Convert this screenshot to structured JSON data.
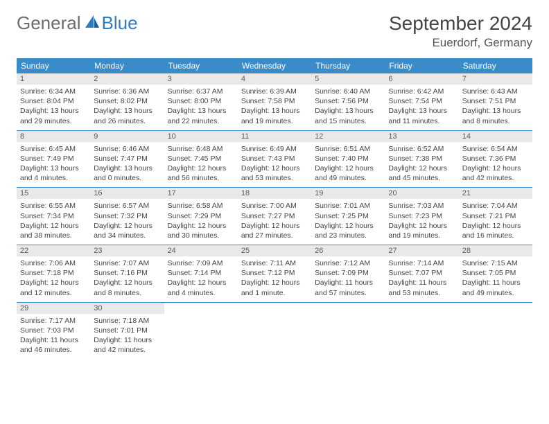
{
  "logo": {
    "text1": "General",
    "text2": "Blue"
  },
  "title": "September 2024",
  "location": "Euerdorf, Germany",
  "colors": {
    "header_bg": "#3a8cc9",
    "header_text": "#ffffff",
    "daynum_bg": "#e9e9e9",
    "row_border": "#3a8cc9",
    "logo_gray": "#6b6b6b",
    "logo_blue": "#2f7bbf",
    "text": "#444444"
  },
  "weekdays": [
    "Sunday",
    "Monday",
    "Tuesday",
    "Wednesday",
    "Thursday",
    "Friday",
    "Saturday"
  ],
  "weeks": [
    [
      {
        "n": "1",
        "sr": "Sunrise: 6:34 AM",
        "ss": "Sunset: 8:04 PM",
        "dl": "Daylight: 13 hours and 29 minutes."
      },
      {
        "n": "2",
        "sr": "Sunrise: 6:36 AM",
        "ss": "Sunset: 8:02 PM",
        "dl": "Daylight: 13 hours and 26 minutes."
      },
      {
        "n": "3",
        "sr": "Sunrise: 6:37 AM",
        "ss": "Sunset: 8:00 PM",
        "dl": "Daylight: 13 hours and 22 minutes."
      },
      {
        "n": "4",
        "sr": "Sunrise: 6:39 AM",
        "ss": "Sunset: 7:58 PM",
        "dl": "Daylight: 13 hours and 19 minutes."
      },
      {
        "n": "5",
        "sr": "Sunrise: 6:40 AM",
        "ss": "Sunset: 7:56 PM",
        "dl": "Daylight: 13 hours and 15 minutes."
      },
      {
        "n": "6",
        "sr": "Sunrise: 6:42 AM",
        "ss": "Sunset: 7:54 PM",
        "dl": "Daylight: 13 hours and 11 minutes."
      },
      {
        "n": "7",
        "sr": "Sunrise: 6:43 AM",
        "ss": "Sunset: 7:51 PM",
        "dl": "Daylight: 13 hours and 8 minutes."
      }
    ],
    [
      {
        "n": "8",
        "sr": "Sunrise: 6:45 AM",
        "ss": "Sunset: 7:49 PM",
        "dl": "Daylight: 13 hours and 4 minutes."
      },
      {
        "n": "9",
        "sr": "Sunrise: 6:46 AM",
        "ss": "Sunset: 7:47 PM",
        "dl": "Daylight: 13 hours and 0 minutes."
      },
      {
        "n": "10",
        "sr": "Sunrise: 6:48 AM",
        "ss": "Sunset: 7:45 PM",
        "dl": "Daylight: 12 hours and 56 minutes."
      },
      {
        "n": "11",
        "sr": "Sunrise: 6:49 AM",
        "ss": "Sunset: 7:43 PM",
        "dl": "Daylight: 12 hours and 53 minutes."
      },
      {
        "n": "12",
        "sr": "Sunrise: 6:51 AM",
        "ss": "Sunset: 7:40 PM",
        "dl": "Daylight: 12 hours and 49 minutes."
      },
      {
        "n": "13",
        "sr": "Sunrise: 6:52 AM",
        "ss": "Sunset: 7:38 PM",
        "dl": "Daylight: 12 hours and 45 minutes."
      },
      {
        "n": "14",
        "sr": "Sunrise: 6:54 AM",
        "ss": "Sunset: 7:36 PM",
        "dl": "Daylight: 12 hours and 42 minutes."
      }
    ],
    [
      {
        "n": "15",
        "sr": "Sunrise: 6:55 AM",
        "ss": "Sunset: 7:34 PM",
        "dl": "Daylight: 12 hours and 38 minutes."
      },
      {
        "n": "16",
        "sr": "Sunrise: 6:57 AM",
        "ss": "Sunset: 7:32 PM",
        "dl": "Daylight: 12 hours and 34 minutes."
      },
      {
        "n": "17",
        "sr": "Sunrise: 6:58 AM",
        "ss": "Sunset: 7:29 PM",
        "dl": "Daylight: 12 hours and 30 minutes."
      },
      {
        "n": "18",
        "sr": "Sunrise: 7:00 AM",
        "ss": "Sunset: 7:27 PM",
        "dl": "Daylight: 12 hours and 27 minutes."
      },
      {
        "n": "19",
        "sr": "Sunrise: 7:01 AM",
        "ss": "Sunset: 7:25 PM",
        "dl": "Daylight: 12 hours and 23 minutes."
      },
      {
        "n": "20",
        "sr": "Sunrise: 7:03 AM",
        "ss": "Sunset: 7:23 PM",
        "dl": "Daylight: 12 hours and 19 minutes."
      },
      {
        "n": "21",
        "sr": "Sunrise: 7:04 AM",
        "ss": "Sunset: 7:21 PM",
        "dl": "Daylight: 12 hours and 16 minutes."
      }
    ],
    [
      {
        "n": "22",
        "sr": "Sunrise: 7:06 AM",
        "ss": "Sunset: 7:18 PM",
        "dl": "Daylight: 12 hours and 12 minutes."
      },
      {
        "n": "23",
        "sr": "Sunrise: 7:07 AM",
        "ss": "Sunset: 7:16 PM",
        "dl": "Daylight: 12 hours and 8 minutes."
      },
      {
        "n": "24",
        "sr": "Sunrise: 7:09 AM",
        "ss": "Sunset: 7:14 PM",
        "dl": "Daylight: 12 hours and 4 minutes."
      },
      {
        "n": "25",
        "sr": "Sunrise: 7:11 AM",
        "ss": "Sunset: 7:12 PM",
        "dl": "Daylight: 12 hours and 1 minute."
      },
      {
        "n": "26",
        "sr": "Sunrise: 7:12 AM",
        "ss": "Sunset: 7:09 PM",
        "dl": "Daylight: 11 hours and 57 minutes."
      },
      {
        "n": "27",
        "sr": "Sunrise: 7:14 AM",
        "ss": "Sunset: 7:07 PM",
        "dl": "Daylight: 11 hours and 53 minutes."
      },
      {
        "n": "28",
        "sr": "Sunrise: 7:15 AM",
        "ss": "Sunset: 7:05 PM",
        "dl": "Daylight: 11 hours and 49 minutes."
      }
    ],
    [
      {
        "n": "29",
        "sr": "Sunrise: 7:17 AM",
        "ss": "Sunset: 7:03 PM",
        "dl": "Daylight: 11 hours and 46 minutes."
      },
      {
        "n": "30",
        "sr": "Sunrise: 7:18 AM",
        "ss": "Sunset: 7:01 PM",
        "dl": "Daylight: 11 hours and 42 minutes."
      },
      null,
      null,
      null,
      null,
      null
    ]
  ]
}
